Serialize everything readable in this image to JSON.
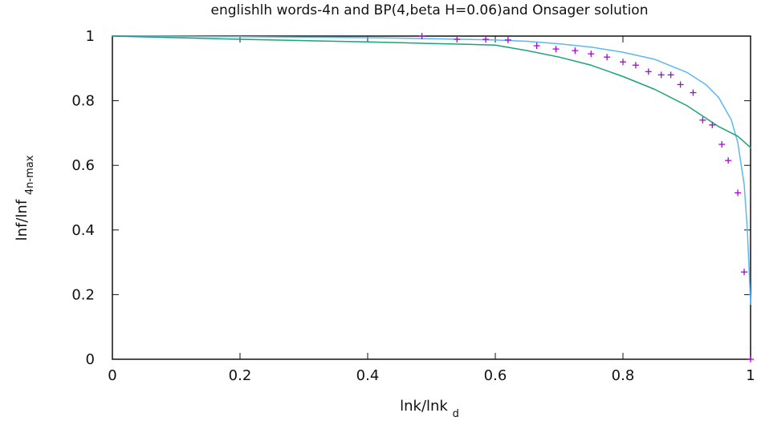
{
  "chart_data": {
    "type": "line",
    "title": "englishlh words-4n and BP(4,beta H=0.06)and Onsager solution",
    "xlabel": {
      "main": "lnk/lnk",
      "sub": "d"
    },
    "ylabel": {
      "main": "lnf/lnf",
      "sub": "4n-max"
    },
    "xlim": [
      0,
      1
    ],
    "ylim": [
      0,
      1
    ],
    "x_ticks": [
      0,
      0.2,
      0.4,
      0.6,
      0.8,
      1
    ],
    "y_ticks": [
      0,
      0.2,
      0.4,
      0.6,
      0.8,
      1
    ],
    "x_tick_labels": [
      "0",
      "0.2",
      "0.4",
      "0.6",
      "0.8",
      "1"
    ],
    "y_tick_labels": [
      "0",
      "0.2",
      "0.4",
      "0.6",
      "0.8",
      "1"
    ],
    "grid": false,
    "legend": "none",
    "series": [
      {
        "type": "line",
        "color": "#5bb8f0",
        "x": [
          0,
          0.1,
          0.2,
          0.3,
          0.4,
          0.5,
          0.6,
          0.65,
          0.7,
          0.75,
          0.8,
          0.85,
          0.9,
          0.93,
          0.95,
          0.97,
          0.98,
          0.99,
          0.995,
          1.0
        ],
        "y": [
          1,
          0.999,
          0.998,
          0.997,
          0.995,
          0.992,
          0.988,
          0.984,
          0.976,
          0.966,
          0.95,
          0.928,
          0.888,
          0.85,
          0.81,
          0.74,
          0.67,
          0.54,
          0.4,
          0.17
        ]
      },
      {
        "type": "line",
        "color": "#1aa37a",
        "x": [
          0,
          0.1,
          0.2,
          0.3,
          0.4,
          0.5,
          0.55,
          0.6,
          0.65,
          0.7,
          0.75,
          0.8,
          0.85,
          0.9,
          0.95,
          0.98,
          1.0
        ],
        "y": [
          1,
          0.995,
          0.99,
          0.986,
          0.982,
          0.977,
          0.975,
          0.972,
          0.955,
          0.935,
          0.91,
          0.875,
          0.835,
          0.785,
          0.72,
          0.69,
          0.655
        ]
      },
      {
        "type": "scatter",
        "marker": "+",
        "color": "#b000e0",
        "x": [
          0.485,
          0.54,
          0.585,
          0.62,
          0.665,
          0.695,
          0.725,
          0.75,
          0.775,
          0.8,
          0.82,
          0.84,
          0.86,
          0.875,
          0.89,
          0.91,
          0.925,
          0.94,
          0.955,
          0.965,
          0.98,
          0.99,
          1.0
        ],
        "y": [
          1.0,
          0.99,
          0.99,
          0.988,
          0.97,
          0.96,
          0.955,
          0.945,
          0.935,
          0.92,
          0.91,
          0.89,
          0.88,
          0.88,
          0.85,
          0.825,
          0.74,
          0.725,
          0.665,
          0.615,
          0.515,
          0.27,
          0.0
        ]
      }
    ]
  }
}
